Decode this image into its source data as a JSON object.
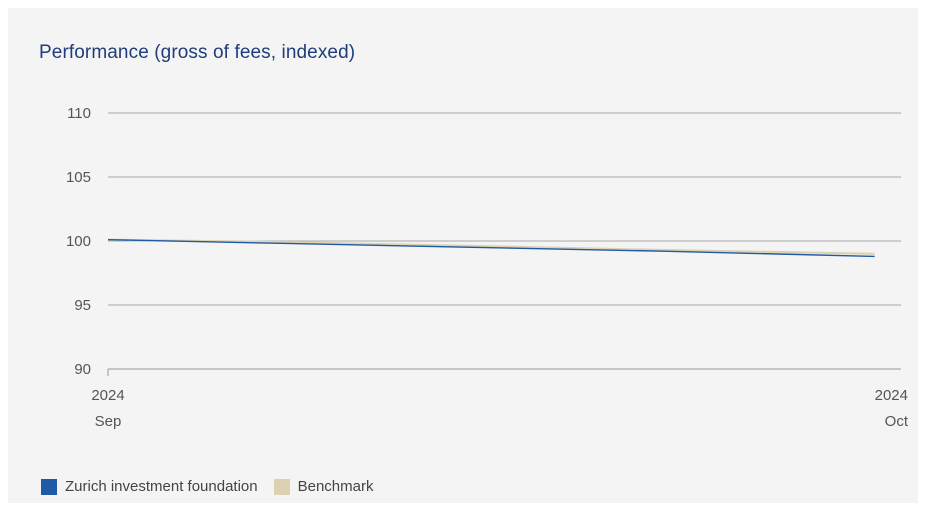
{
  "chart_data": {
    "type": "line",
    "title": "Performance (gross of fees, indexed)",
    "xlabel": "",
    "ylabel": "",
    "ylim": [
      90,
      110
    ],
    "yticks": [
      110,
      105,
      100,
      95,
      90
    ],
    "x": [
      "2024-09-01",
      "2024-09-08",
      "2024-09-15",
      "2024-09-22",
      "2024-09-30"
    ],
    "x_tick_labels": [
      {
        "year": "2024",
        "month": "Sep"
      },
      {
        "year": "2024",
        "month": "Oct"
      }
    ],
    "series": [
      {
        "name": "Zurich investment foundation",
        "color": "#1f5aa6",
        "values": [
          100.1,
          99.8,
          99.5,
          99.2,
          98.8
        ]
      },
      {
        "name": "Benchmark",
        "color": "#dcd2b2",
        "values": [
          100.1,
          99.9,
          99.6,
          99.3,
          99.0
        ]
      }
    ],
    "grid": true,
    "legend_position": "bottom-left"
  },
  "legend": {
    "items": [
      {
        "label": "Zurich investment foundation",
        "color": "#1f5aa6"
      },
      {
        "label": "Benchmark",
        "color": "#dcd2b2"
      }
    ]
  }
}
